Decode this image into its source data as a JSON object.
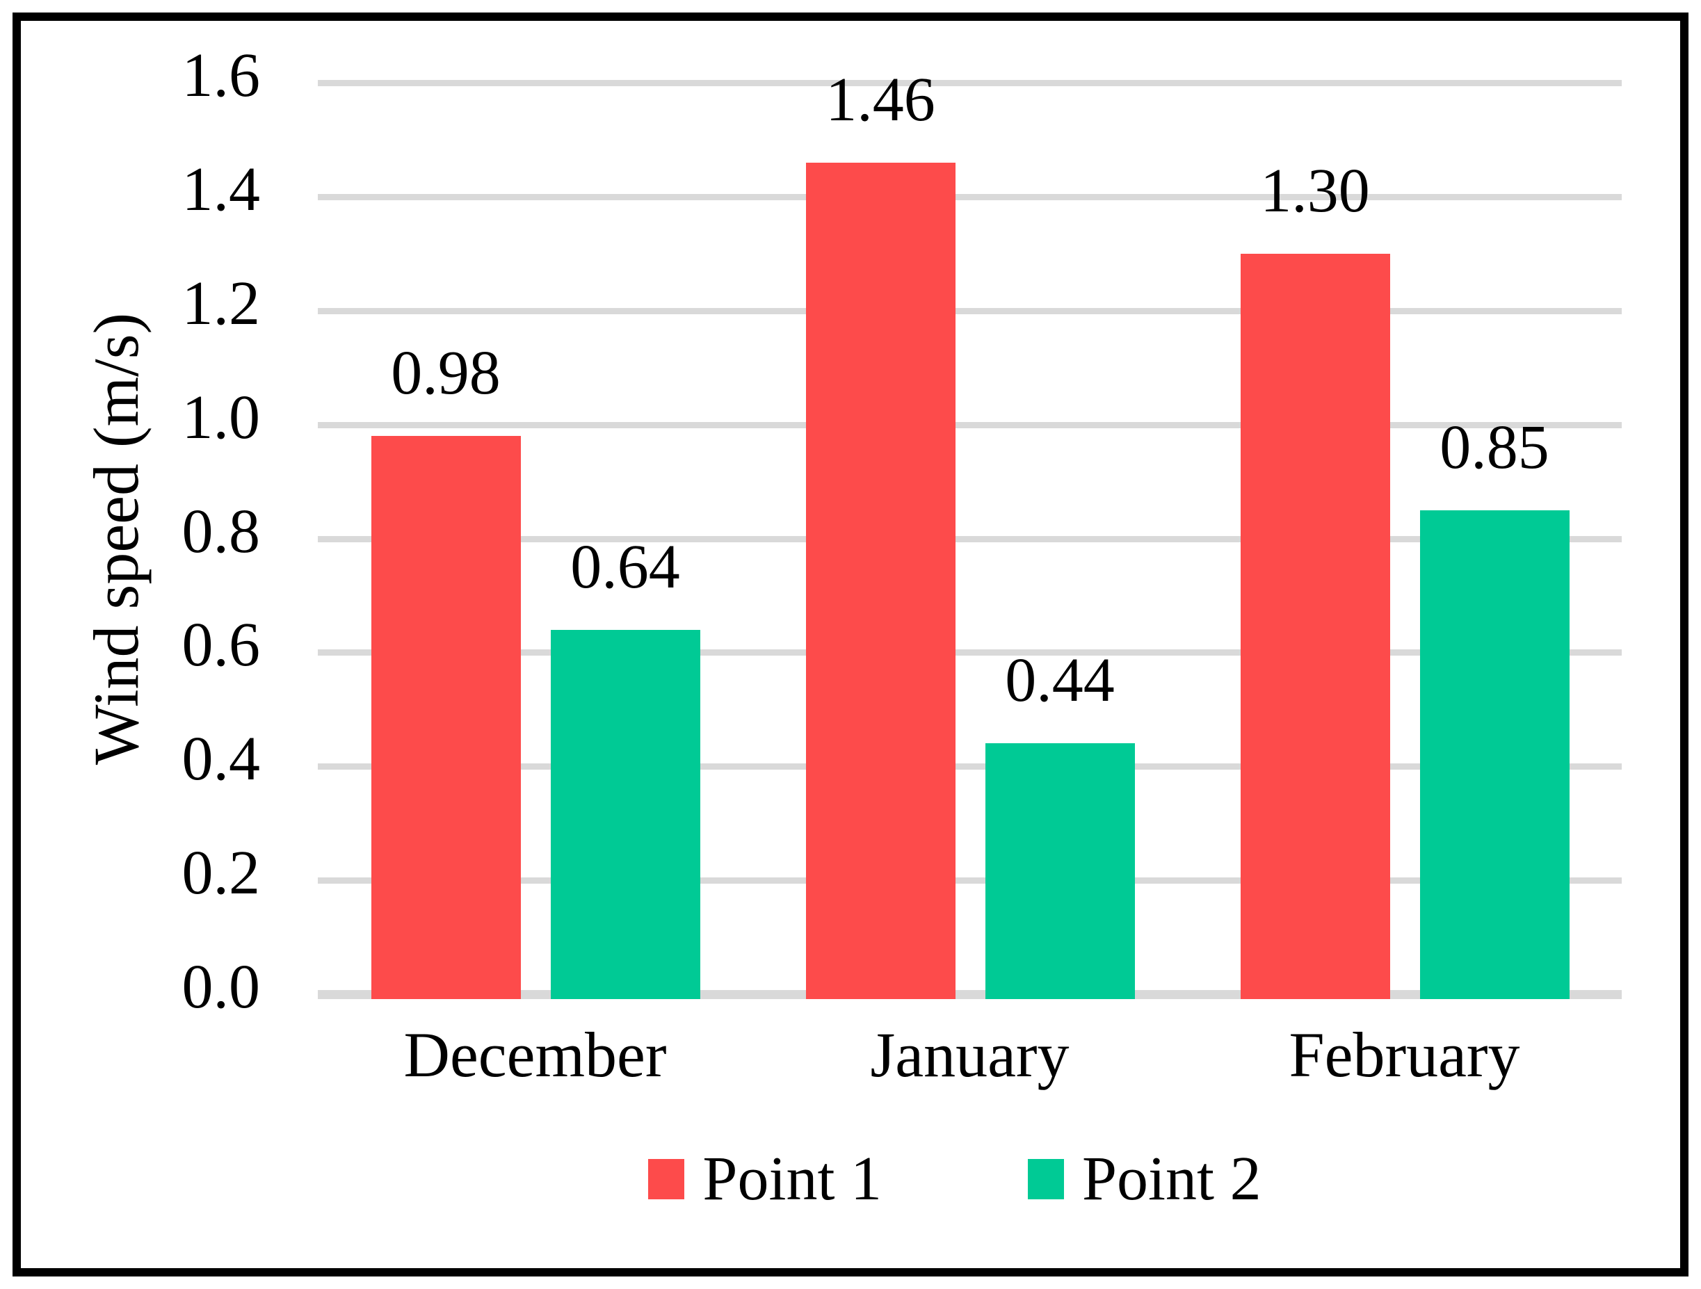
{
  "chart_data": {
    "type": "bar",
    "title": "",
    "xlabel": "",
    "ylabel": "Wind speed (m/s)",
    "categories": [
      "December",
      "January",
      "February"
    ],
    "series": [
      {
        "name": "Point 1",
        "color": "#FD4B4B",
        "values": [
          0.98,
          1.46,
          1.3
        ]
      },
      {
        "name": "Point 2",
        "color": "#00CA95",
        "values": [
          0.64,
          0.44,
          0.85
        ]
      }
    ],
    "value_labels": [
      [
        "0.98",
        "1.46",
        "1.30"
      ],
      [
        "0.64",
        "0.44",
        "0.85"
      ]
    ],
    "ylim": [
      0,
      1.6
    ],
    "ytick_step": 0.2,
    "ytick_labels": [
      "0.0",
      "0.2",
      "0.4",
      "0.6",
      "0.8",
      "1.0",
      "1.2",
      "1.4",
      "1.6"
    ],
    "grid": true,
    "legend_position": "bottom",
    "gridline_color": "#D9D9D9",
    "axis_line_color": "#D9D9D9",
    "text_color": "#000000",
    "frame_color": "#000000"
  }
}
